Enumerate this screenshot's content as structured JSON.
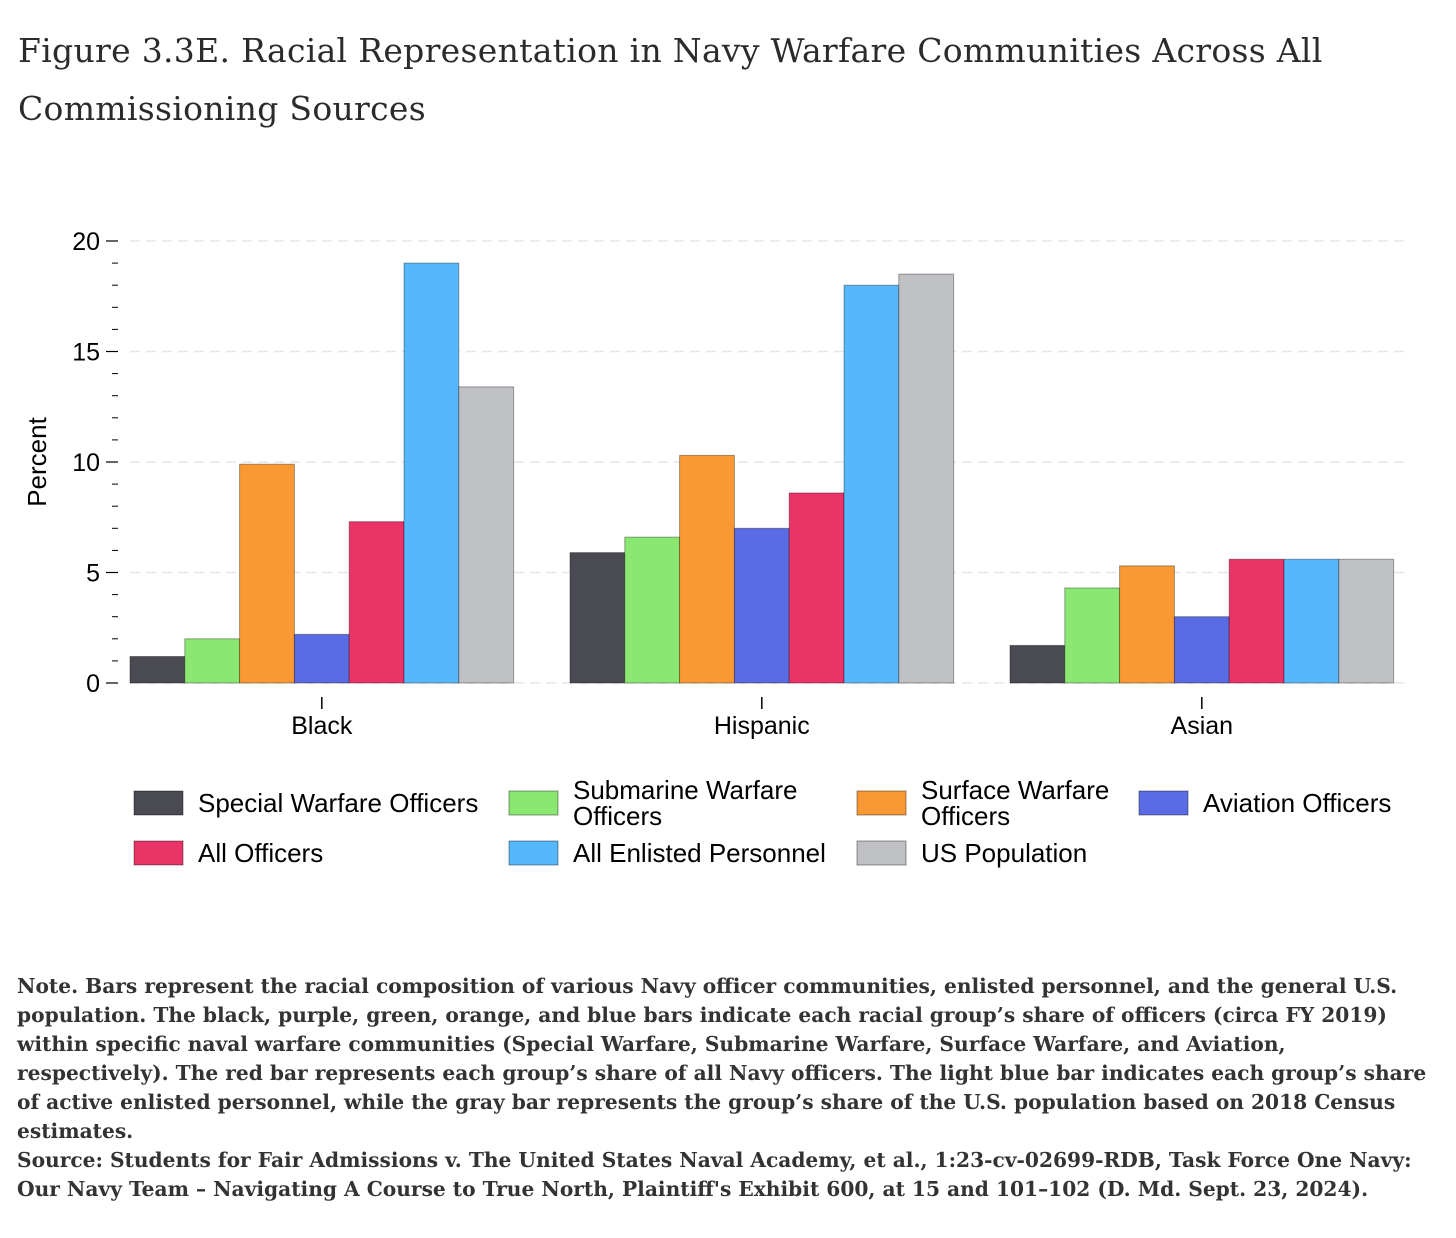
{
  "title": "Figure 3.3E. Racial Representation in Navy Warfare Communities Across All Commissioning Sources",
  "chart_data": {
    "type": "bar",
    "categories": [
      "Black",
      "Hispanic",
      "Asian"
    ],
    "ylabel": "Percent",
    "xlabel": "",
    "ylim": [
      0,
      20
    ],
    "yticks": [
      0,
      5,
      10,
      15,
      20
    ],
    "grid": true,
    "legend_position": "bottom",
    "series": [
      {
        "name": "Special Warfare Officers",
        "legend_label": [
          "Special Warfare Officers"
        ],
        "color": "#4a4a53",
        "values": [
          1.2,
          5.9,
          1.7
        ]
      },
      {
        "name": "Submarine Warfare Officers",
        "legend_label": [
          "Submarine Warfare",
          "Officers"
        ],
        "color": "#8ae872",
        "values": [
          2.0,
          6.6,
          4.3
        ]
      },
      {
        "name": "Surface Warfare Officers",
        "legend_label": [
          "Surface Warfare",
          "Officers"
        ],
        "color": "#fa9934",
        "values": [
          9.9,
          10.3,
          5.3
        ]
      },
      {
        "name": "Aviation Officers",
        "legend_label": [
          "Aviation Officers"
        ],
        "color": "#5a6be3",
        "values": [
          2.2,
          7.0,
          3.0
        ]
      },
      {
        "name": "All Officers",
        "legend_label": [
          "All Officers"
        ],
        "color": "#ea3468",
        "values": [
          7.3,
          8.6,
          5.6
        ]
      },
      {
        "name": "All Enlisted Personnel",
        "legend_label": [
          "All Enlisted Personnel"
        ],
        "color": "#56b8fb",
        "values": [
          19.0,
          18.0,
          5.6
        ]
      },
      {
        "name": "US Population",
        "legend_label": [
          "US Population"
        ],
        "color": "#c0c1c4",
        "values": [
          13.4,
          18.5,
          5.6
        ]
      }
    ]
  },
  "note": {
    "text": "Note. Bars represent the racial composition of various Navy officer communities, enlisted personnel, and the general U.S. population. The black, purple, green, orange, and blue bars indicate each racial group’s share of officers (circa FY 2019) within specific naval warfare communities (Special Warfare, Submarine Warfare, Surface Warfare, and Aviation, respectively). The red bar represents each group’s share of all Navy officers. The light blue bar indicates each group’s share of active enlisted personnel, while the gray bar represents the group’s share of the U.S. population based on 2018 Census estimates.",
    "source": "Source: Students for Fair Admissions v. The United States Naval Academy, et al., 1:23-cv-02699-RDB, Task Force One Navy: Our Navy Team – Navigating A Course to True North, Plaintiff's Exhibit 600, at 15 and 101–102 (D. Md. Sept. 23, 2024)."
  }
}
